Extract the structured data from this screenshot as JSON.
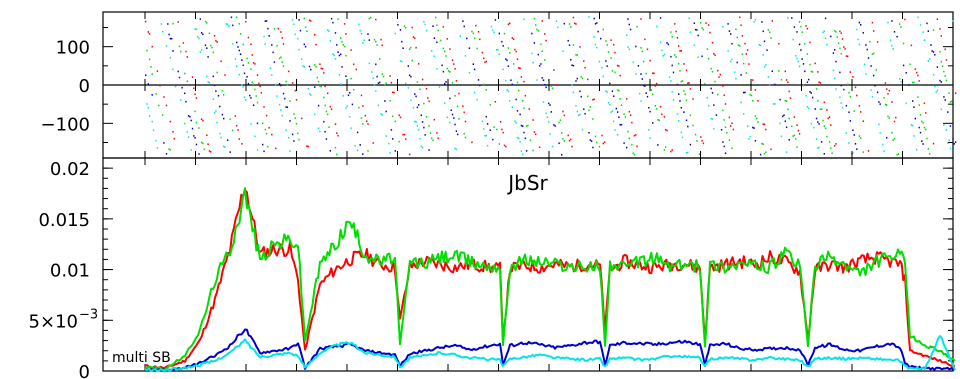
{
  "chart_data": [
    {
      "type": "scatter",
      "panel": "phase",
      "ylim": [
        -190,
        190
      ],
      "yticks": [
        {
          "value": 100,
          "label": "100"
        },
        {
          "value": 0,
          "label": "0"
        },
        {
          "value": -100,
          "label": "−100"
        }
      ],
      "pattern": "diagonal wrapping phase streaks (phase vs. time, wrapping from -180 to 180)",
      "series": [
        {
          "color": "#ff0000",
          "slope_shift": 0.0
        },
        {
          "color": "#00dd00",
          "slope_shift": 0.18
        },
        {
          "color": "#0000cc",
          "slope_shift": 0.36
        },
        {
          "color": "#00e5e5",
          "slope_shift": 0.54
        }
      ],
      "streak_period_x": 33,
      "streak_start_x": 145,
      "streak_end_x": 955
    },
    {
      "type": "line",
      "panel": "amplitude",
      "title": "JbSr",
      "annotation": "multi SB",
      "ylim": [
        0,
        0.021
      ],
      "yticks": [
        {
          "value": 0.02,
          "label": "0.02"
        },
        {
          "value": 0.015,
          "label": "0.015"
        },
        {
          "value": 0.01,
          "label": "0.01"
        },
        {
          "value": 0.005,
          "label_base": "5×10",
          "label_exp": "−3"
        },
        {
          "value": 0,
          "label": "0"
        }
      ],
      "x": [
        145,
        165,
        185,
        200,
        215,
        230,
        245,
        260,
        275,
        290,
        298,
        305,
        320,
        335,
        350,
        365,
        380,
        395,
        400,
        410,
        425,
        440,
        455,
        470,
        485,
        500,
        503,
        510,
        525,
        540,
        555,
        570,
        585,
        600,
        605,
        610,
        625,
        640,
        655,
        670,
        685,
        700,
        705,
        710,
        725,
        740,
        755,
        770,
        785,
        800,
        808,
        815,
        830,
        845,
        860,
        875,
        890,
        900,
        905,
        910,
        925,
        940,
        955
      ],
      "series": [
        {
          "color": "#ff0000",
          "values": [
            0.0005,
            0.0003,
            0.001,
            0.003,
            0.007,
            0.012,
            0.0185,
            0.0115,
            0.012,
            0.012,
            0.009,
            0.002,
            0.0085,
            0.01,
            0.011,
            0.0115,
            0.0105,
            0.0102,
            0.005,
            0.0103,
            0.0108,
            0.0105,
            0.0102,
            0.0105,
            0.0103,
            0.0101,
            0.003,
            0.0101,
            0.0104,
            0.0102,
            0.0105,
            0.0103,
            0.0105,
            0.0104,
            0.004,
            0.01,
            0.0108,
            0.0104,
            0.0102,
            0.0105,
            0.0106,
            0.0101,
            0.003,
            0.0102,
            0.0105,
            0.0108,
            0.0105,
            0.0112,
            0.0108,
            0.0098,
            0.003,
            0.01,
            0.0105,
            0.0102,
            0.0108,
            0.0112,
            0.0108,
            0.0105,
            0.009,
            0.002,
            0.0015,
            0.001,
            0.0005
          ]
        },
        {
          "color": "#00dd00",
          "values": [
            0.0004,
            0.0002,
            0.0015,
            0.004,
            0.009,
            0.012,
            0.0175,
            0.011,
            0.0125,
            0.013,
            0.0125,
            0.003,
            0.0105,
            0.0125,
            0.0148,
            0.0115,
            0.0108,
            0.0112,
            0.0025,
            0.0108,
            0.0106,
            0.0112,
            0.0114,
            0.0108,
            0.0104,
            0.0103,
            0.0025,
            0.0103,
            0.011,
            0.0108,
            0.0106,
            0.0103,
            0.0102,
            0.0104,
            0.0025,
            0.0105,
            0.0102,
            0.0108,
            0.0112,
            0.0103,
            0.0105,
            0.0103,
            0.0025,
            0.0105,
            0.0103,
            0.0106,
            0.0104,
            0.0102,
            0.0115,
            0.0104,
            0.0025,
            0.0105,
            0.0112,
            0.0104,
            0.0095,
            0.0108,
            0.0112,
            0.0115,
            0.0105,
            0.0035,
            0.0025,
            0.002,
            0.001
          ]
        },
        {
          "color": "#0000cc",
          "values": [
            0.0002,
            0.0001,
            0.0003,
            0.0008,
            0.0015,
            0.0025,
            0.0042,
            0.0018,
            0.002,
            0.0022,
            0.0028,
            0.0003,
            0.0022,
            0.0024,
            0.0026,
            0.002,
            0.0018,
            0.0016,
            0.0005,
            0.0017,
            0.002,
            0.0023,
            0.0025,
            0.0021,
            0.0024,
            0.0027,
            0.0006,
            0.0025,
            0.0028,
            0.0026,
            0.0023,
            0.0025,
            0.0028,
            0.0029,
            0.0006,
            0.0025,
            0.0028,
            0.0027,
            0.0026,
            0.0028,
            0.0029,
            0.0026,
            0.0006,
            0.0025,
            0.0027,
            0.0022,
            0.0021,
            0.0022,
            0.0023,
            0.0021,
            0.0006,
            0.0023,
            0.0026,
            0.0021,
            0.002,
            0.0024,
            0.0027,
            0.0023,
            0.0008,
            0.0004,
            0.0003,
            0.0002,
            0.0002
          ]
        },
        {
          "color": "#00e5e5",
          "values": [
            0.0001,
            0.0001,
            0.0003,
            0.0006,
            0.001,
            0.0018,
            0.003,
            0.0014,
            0.0016,
            0.0018,
            0.0015,
            0.0003,
            0.0018,
            0.0025,
            0.0028,
            0.0018,
            0.0016,
            0.0014,
            0.0004,
            0.0013,
            0.0015,
            0.0018,
            0.0016,
            0.0013,
            0.0012,
            0.0011,
            0.0004,
            0.0012,
            0.0014,
            0.0016,
            0.0013,
            0.0012,
            0.0011,
            0.0012,
            0.0004,
            0.0012,
            0.0013,
            0.0011,
            0.0012,
            0.0015,
            0.0014,
            0.0013,
            0.0004,
            0.0012,
            0.0013,
            0.0012,
            0.0011,
            0.0013,
            0.0012,
            0.0011,
            0.0004,
            0.0012,
            0.0013,
            0.0012,
            0.0013,
            0.0012,
            0.0011,
            0.001,
            0.0004,
            0.0003,
            0.0002,
            0.0035,
            0.0001
          ]
        }
      ]
    }
  ]
}
